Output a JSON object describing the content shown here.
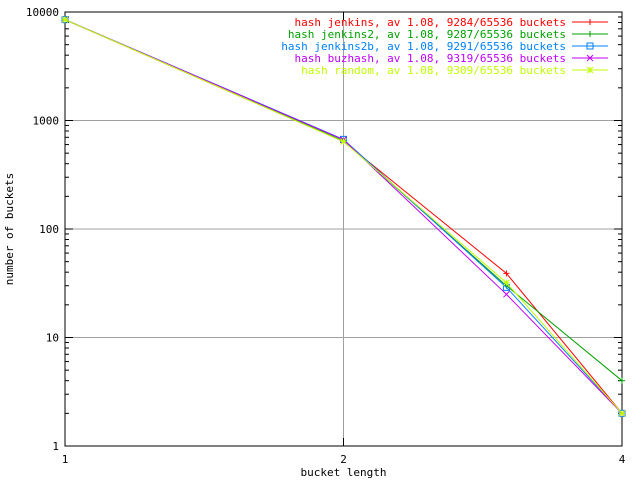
{
  "chart_data": {
    "type": "line",
    "xlabel": "bucket length",
    "ylabel": "number of buckets",
    "x_scale": "log",
    "y_scale": "log",
    "xlim": [
      1,
      4
    ],
    "ylim": [
      1,
      10000
    ],
    "x_ticks": [
      "1",
      "2",
      "4"
    ],
    "y_ticks": [
      "1",
      "10",
      "100",
      "1000",
      "10000"
    ],
    "grid": true,
    "legend_position": "top-right",
    "series": [
      {
        "name": "hash jenkins, av 1.08, 9284/65536 buckets",
        "color": "#ff0000",
        "marker": "plus",
        "x": [
          1,
          2,
          3,
          4
        ],
        "y": [
          8500,
          640,
          39,
          2
        ]
      },
      {
        "name": "hash jenkins2, av 1.08, 9287/65536 buckets",
        "color": "#00a000",
        "marker": "plus",
        "x": [
          1,
          2,
          3,
          4
        ],
        "y": [
          8500,
          650,
          30,
          4
        ]
      },
      {
        "name": "hash jenkins2b, av 1.08, 9291/65536 buckets",
        "color": "#0080ff",
        "marker": "square",
        "x": [
          1,
          2,
          3,
          4
        ],
        "y": [
          8500,
          670,
          29,
          2
        ]
      },
      {
        "name": "hash buzhash, av 1.08, 9319/65536 buckets",
        "color": "#c000ff",
        "marker": "x",
        "x": [
          1,
          2,
          3,
          4
        ],
        "y": [
          8500,
          665,
          25,
          2
        ]
      },
      {
        "name": "hash random, av 1.08, 9309/65536 buckets",
        "color": "#c0ff00",
        "marker": "star",
        "x": [
          1,
          2,
          3,
          4
        ],
        "y": [
          8500,
          640,
          32,
          2
        ]
      }
    ]
  }
}
